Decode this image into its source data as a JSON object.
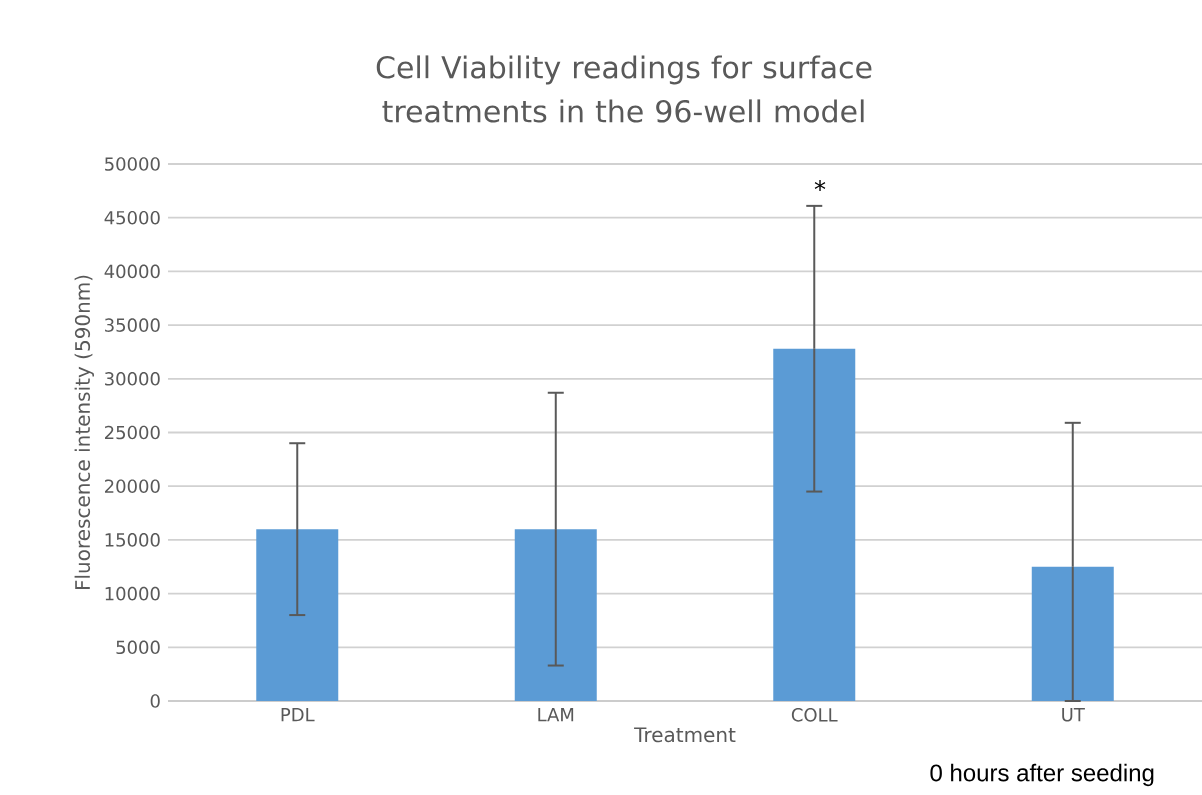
{
  "chart_data": {
    "type": "bar",
    "title": "Cell Viability readings for surface treatments in the 96-well model",
    "xlabel": "Treatment",
    "ylabel": "Fluorescence intensity (590nm)",
    "categories": [
      "PDL",
      "LAM",
      "COLL",
      "UT"
    ],
    "values": [
      16000,
      16000,
      32800,
      12500
    ],
    "errors": [
      8000,
      12700,
      13300,
      [
        0,
        25900
      ]
    ],
    "color": "#5b9bd5",
    "ylim": [
      0,
      50000
    ],
    "yticks": [
      0,
      5000,
      10000,
      15000,
      20000,
      25000,
      30000,
      35000,
      40000,
      45000,
      50000
    ],
    "grid": "y",
    "annotations": [
      "*",
      "0 hours after seeding"
    ]
  }
}
